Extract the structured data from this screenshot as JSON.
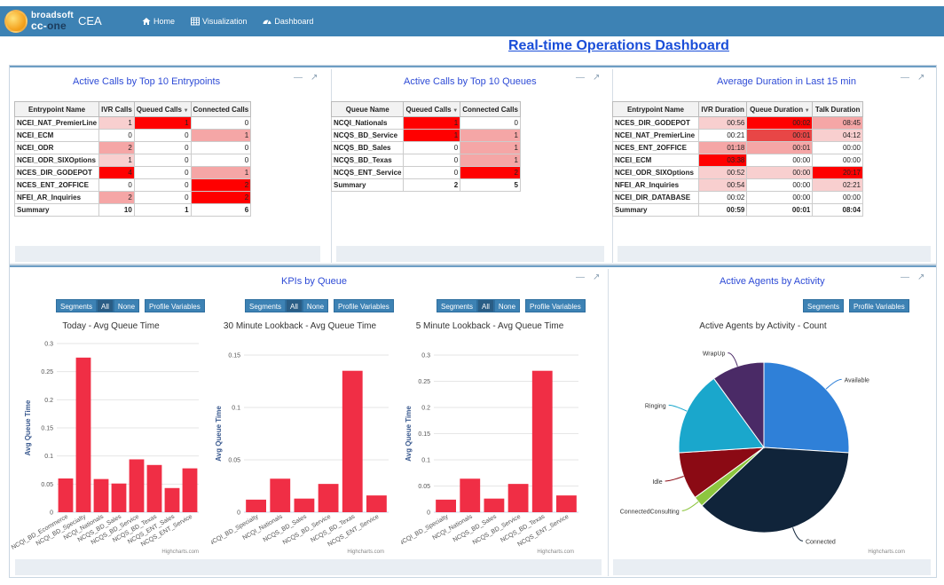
{
  "nav": {
    "brand": "broadsoft",
    "product_pre": "cc-",
    "product_post": "one",
    "app": "CEA",
    "links": [
      {
        "label": "Home",
        "icon": "home-icon"
      },
      {
        "label": "Visualization",
        "icon": "grid-icon"
      },
      {
        "label": "Dashboard",
        "icon": "dashboard-icon"
      }
    ]
  },
  "page_title": "Real-time Operations Dashboard",
  "panels": {
    "entrypoints": {
      "title": "Active Calls by Top 10 Entrypoints",
      "headers": [
        "Entrypoint Name",
        "IVR Calls",
        "Queued Calls",
        "Connected Calls"
      ],
      "rows": [
        {
          "name": "NCEI_NAT_PremierLine",
          "v": [
            "1",
            "1",
            "0"
          ],
          "h": [
            "h1",
            "h5",
            ""
          ]
        },
        {
          "name": "NCEI_ECM",
          "v": [
            "0",
            "0",
            "1"
          ],
          "h": [
            "",
            "",
            "h2"
          ]
        },
        {
          "name": "NCEI_ODR",
          "v": [
            "2",
            "0",
            "0"
          ],
          "h": [
            "h2",
            "",
            ""
          ]
        },
        {
          "name": "NCEI_ODR_SIXOptions",
          "v": [
            "1",
            "0",
            "0"
          ],
          "h": [
            "h1",
            "",
            ""
          ]
        },
        {
          "name": "NCES_DIR_GODEPOT",
          "v": [
            "4",
            "0",
            "1"
          ],
          "h": [
            "h5",
            "",
            "h2"
          ]
        },
        {
          "name": "NCES_ENT_2OFFICE",
          "v": [
            "0",
            "0",
            "2"
          ],
          "h": [
            "",
            "",
            "h5"
          ]
        },
        {
          "name": "NFEI_AR_Inquiries",
          "v": [
            "2",
            "0",
            "2"
          ],
          "h": [
            "h2",
            "",
            "h5"
          ]
        }
      ],
      "summary": {
        "name": "Summary",
        "v": [
          "10",
          "1",
          "6"
        ]
      }
    },
    "queues": {
      "title": "Active Calls by Top 10 Queues",
      "headers": [
        "Queue Name",
        "Queued Calls",
        "Connected Calls"
      ],
      "rows": [
        {
          "name": "NCQI_Nationals",
          "v": [
            "1",
            "0"
          ],
          "h": [
            "h5",
            ""
          ]
        },
        {
          "name": "NCQS_BD_Service",
          "v": [
            "1",
            "1"
          ],
          "h": [
            "h5",
            "h2"
          ]
        },
        {
          "name": "NCQS_BD_Sales",
          "v": [
            "0",
            "1"
          ],
          "h": [
            "",
            "h2"
          ]
        },
        {
          "name": "NCQS_BD_Texas",
          "v": [
            "0",
            "1"
          ],
          "h": [
            "",
            "h2"
          ]
        },
        {
          "name": "NCQS_ENT_Service",
          "v": [
            "0",
            "2"
          ],
          "h": [
            "",
            "h5"
          ]
        }
      ],
      "summary": {
        "name": "Summary",
        "v": [
          "2",
          "5"
        ]
      }
    },
    "duration": {
      "title": "Average Duration in Last 15 min",
      "headers": [
        "Entrypoint Name",
        "IVR Duration",
        "Queue Duration",
        "Talk Duration"
      ],
      "rows": [
        {
          "name": "NCES_DIR_GODEPOT",
          "v": [
            "00:56",
            "00:02",
            "08:45"
          ],
          "h": [
            "h1",
            "h5",
            "h2"
          ]
        },
        {
          "name": "NCEI_NAT_PremierLine",
          "v": [
            "00:21",
            "00:01",
            "04:12"
          ],
          "h": [
            "",
            "h4",
            "h1"
          ]
        },
        {
          "name": "NCES_ENT_2OFFICE",
          "v": [
            "01:18",
            "00:01",
            "00:00"
          ],
          "h": [
            "h2",
            "h2",
            ""
          ]
        },
        {
          "name": "NCEI_ECM",
          "v": [
            "03:38",
            "00:00",
            "00:00"
          ],
          "h": [
            "h5",
            "",
            ""
          ]
        },
        {
          "name": "NCEI_ODR_SIXOptions",
          "v": [
            "00:52",
            "00:00",
            "20:17"
          ],
          "h": [
            "h1",
            "h1",
            "h5"
          ]
        },
        {
          "name": "NFEI_AR_Inquiries",
          "v": [
            "00:54",
            "00:00",
            "02:21"
          ],
          "h": [
            "h1",
            "",
            "h1"
          ]
        },
        {
          "name": "NCEI_DIR_DATABASE",
          "v": [
            "00:02",
            "00:00",
            "00:00"
          ],
          "h": [
            "",
            "",
            ""
          ]
        }
      ],
      "summary": {
        "name": "Summary",
        "v": [
          "00:59",
          "00:01",
          "08:04"
        ]
      }
    },
    "kpis": {
      "title": "KPIs by Queue"
    },
    "agents": {
      "title": "Active Agents by Activity"
    }
  },
  "buttons": {
    "segments": "Segments",
    "all": "All",
    "none": "None",
    "profile_variables": "Profile Variables"
  },
  "credits": "Highcharts.com",
  "colors": {
    "nav": "#3d82b4",
    "title": "#1a4ed8",
    "panel_title": "#2e4bd6",
    "bar": "#f02e45"
  },
  "chart_data": [
    {
      "type": "bar",
      "title": "Today - Avg Queue Time",
      "ylabel": "Avg Queue Time",
      "ylim": [
        0,
        0.3
      ],
      "yticks": [
        "0",
        "0.05",
        "0.1",
        "0.15",
        "0.2",
        "0.25",
        "0.3"
      ],
      "categories": [
        "NCQI_BD_Ecommerce",
        "NCQI_BD_Specialty",
        "NCQI_Nationals",
        "NCQS_BD_Sales",
        "NCQS_BD_Service",
        "NCQS_BD_Texas",
        "NCQS_ENT_Sales",
        "NCQS_ENT_Service"
      ],
      "xticklabels": [
        "NCQI_BD_Ecommerce",
        "NCQI_BD_Specialty",
        "NCQI_Nationals",
        "NCQS_BD_Sales",
        "NCQS_BD_Service",
        "NCQS_BD_Texas",
        "NCQS_ENT_Sales",
        "NCQS_ENT_Service"
      ],
      "values": [
        0.06,
        0.275,
        0.059,
        0.051,
        0.094,
        0.084,
        0.043,
        0.078
      ]
    },
    {
      "type": "bar",
      "title": "30 Minute Lookback - Avg Queue Time",
      "ylabel": "Avg Queue Time",
      "ylim": [
        0,
        0.15
      ],
      "yticks": [
        "0",
        "0.05",
        "0.1",
        "0.15"
      ],
      "categories": [
        "NCQI_BD_Specialty",
        "NCQI_Nationals",
        "NCQS_BD_Sales",
        "NCQS_BD_Service",
        "NCQS_BD_Texas",
        "NCQS_ENT_Service"
      ],
      "xticklabels": [
        "NCQI_BD_Specialty",
        "NCQI_Nationals",
        "NCQS_BD_Sales",
        "NCQS_BD_Service",
        "NCQS_BD_Texas",
        "NCQS_ENT_Service"
      ],
      "values": [
        0.012,
        0.032,
        0.013,
        0.027,
        0.135,
        0.016
      ]
    },
    {
      "type": "bar",
      "title": "5 Minute Lookback - Avg Queue Time",
      "ylabel": "Avg Queue Time",
      "ylim": [
        0,
        0.3
      ],
      "yticks": [
        "0",
        "0.05",
        "0.1",
        "0.15",
        "0.2",
        "0.25",
        "0.3"
      ],
      "categories": [
        "NCQI_BD_Specialty",
        "NCQI_Nationals",
        "NCQS_BD_Sales",
        "NCQS_BD_Service",
        "NCQS_BD_Texas",
        "NCQS_ENT_Service"
      ],
      "xticklabels": [
        "NCQI_BD_Specialty",
        "NCQI_Nationals",
        "NCQS_BD_Sales",
        "NCQS_BD_Service",
        "NCQS_BD_Texas",
        "NCQS_ENT_Service"
      ],
      "values": [
        0.024,
        0.064,
        0.026,
        0.054,
        0.27,
        0.032
      ]
    },
    {
      "type": "pie",
      "title": "Active Agents by Activity - Count",
      "slices": [
        {
          "name": "Available",
          "value": 26,
          "color": "#2f80d8"
        },
        {
          "name": "Connected",
          "value": 37,
          "color": "#10243a"
        },
        {
          "name": "ConnectedConsulting",
          "value": 2,
          "color": "#8dc63f"
        },
        {
          "name": "Idle",
          "value": 9,
          "color": "#8b0a14"
        },
        {
          "name": "Ringing",
          "value": 16,
          "color": "#1aa7cc"
        },
        {
          "name": "WrapUp",
          "value": 10,
          "color": "#4a2a66"
        }
      ]
    }
  ]
}
